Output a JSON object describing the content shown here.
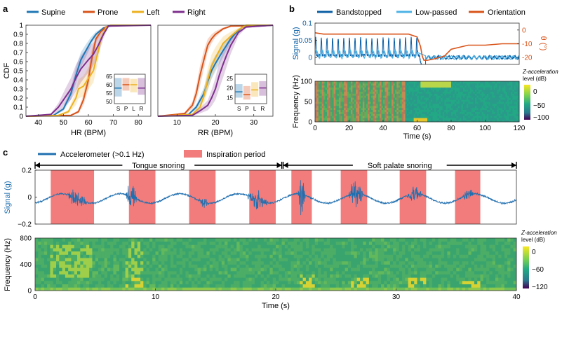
{
  "panel_labels": {
    "a": "a",
    "b": "b",
    "c": "c"
  },
  "colors": {
    "supine": "#1f77b4",
    "prone": "#d9541a",
    "left": "#edb120",
    "right": "#7e2f8e",
    "bandstopped": "#0b5fa5",
    "lowpassed": "#4db3e6",
    "orientation": "#d9541a",
    "inspiration": "#f27c7c",
    "accel": "#1f6fb0"
  },
  "chart_data": [
    {
      "id": "a_hr",
      "type": "line",
      "title": "",
      "xlabel": "HR (BPM)",
      "ylabel": "CDF",
      "xlim": [
        35,
        85
      ],
      "ylim": [
        0,
        1
      ],
      "xticks": [
        "40",
        "50",
        "60",
        "70",
        "80"
      ],
      "yticks": [
        "0",
        "0.1",
        "0.2",
        "0.3",
        "0.4",
        "0.5",
        "0.6",
        "0.7",
        "0.8",
        "0.9",
        "1"
      ],
      "legend": [
        "Supine",
        "Prone",
        "Left",
        "Right"
      ],
      "series": [
        {
          "name": "Supine",
          "x": [
            35,
            46,
            50,
            53,
            55,
            57,
            59,
            61,
            63,
            66,
            70,
            85
          ],
          "y": [
            0,
            0.01,
            0.08,
            0.25,
            0.45,
            0.62,
            0.72,
            0.82,
            0.9,
            0.97,
            1,
            1
          ]
        },
        {
          "name": "Prone",
          "x": [
            35,
            53,
            56,
            58,
            60,
            61,
            62,
            63,
            65,
            67,
            69,
            85
          ],
          "y": [
            0,
            0.01,
            0.05,
            0.18,
            0.4,
            0.58,
            0.72,
            0.85,
            0.93,
            0.98,
            1,
            1
          ]
        },
        {
          "name": "Left",
          "x": [
            35,
            48,
            52,
            55,
            56,
            58,
            62,
            64,
            65,
            67,
            69,
            85
          ],
          "y": [
            0,
            0.01,
            0.05,
            0.2,
            0.3,
            0.33,
            0.5,
            0.72,
            0.85,
            0.97,
            1,
            1
          ]
        },
        {
          "name": "Right",
          "x": [
            35,
            45,
            48,
            51,
            53,
            55,
            57,
            60,
            62,
            64,
            66,
            68,
            85
          ],
          "y": [
            0,
            0.02,
            0.1,
            0.22,
            0.3,
            0.42,
            0.52,
            0.62,
            0.68,
            0.78,
            0.9,
            0.99,
            1
          ]
        }
      ],
      "inset": {
        "yticks": [
          "50",
          "55",
          "60",
          "65"
        ],
        "ylim": [
          50,
          65
        ],
        "categories": [
          "S",
          "P",
          "L",
          "R"
        ],
        "boxes": [
          {
            "lo": 53,
            "hi": 64,
            "med": 58
          },
          {
            "lo": 56.5,
            "hi": 64,
            "med": 60
          },
          {
            "lo": 55.5,
            "hi": 63.5,
            "med": 60
          },
          {
            "lo": 54,
            "hi": 64,
            "med": 58
          }
        ]
      }
    },
    {
      "id": "a_rr",
      "type": "line",
      "title": "",
      "xlabel": "RR (BPM)",
      "ylabel": "",
      "xlim": [
        5,
        35
      ],
      "ylim": [
        0,
        1
      ],
      "xticks": [
        "10",
        "20",
        "30"
      ],
      "series": [
        {
          "name": "Supine",
          "x": [
            5,
            13,
            15,
            17,
            18,
            19,
            20,
            21,
            22,
            24,
            25,
            27,
            35
          ],
          "y": [
            0,
            0.02,
            0.1,
            0.25,
            0.38,
            0.5,
            0.58,
            0.65,
            0.72,
            0.85,
            0.9,
            0.98,
            1
          ]
        },
        {
          "name": "Prone",
          "x": [
            5,
            12,
            14,
            15,
            16,
            17,
            18,
            19,
            20,
            22,
            24,
            35
          ],
          "y": [
            0,
            0.03,
            0.12,
            0.25,
            0.45,
            0.62,
            0.78,
            0.85,
            0.9,
            0.96,
            0.99,
            1
          ]
        },
        {
          "name": "Left",
          "x": [
            5,
            14,
            16,
            17,
            18,
            19,
            20,
            21,
            22,
            24,
            26,
            28,
            35
          ],
          "y": [
            0,
            0.02,
            0.1,
            0.22,
            0.4,
            0.55,
            0.64,
            0.72,
            0.8,
            0.88,
            0.95,
            1,
            1
          ]
        },
        {
          "name": "Right",
          "x": [
            5,
            14,
            16,
            18,
            19,
            20,
            21,
            22,
            23,
            24,
            25,
            26,
            28,
            35
          ],
          "y": [
            0,
            0.01,
            0.06,
            0.12,
            0.2,
            0.3,
            0.45,
            0.57,
            0.68,
            0.78,
            0.85,
            0.92,
            0.98,
            1
          ]
        }
      ],
      "inset": {
        "yticks": [
          "15",
          "20",
          "25"
        ],
        "ylim": [
          13,
          26
        ],
        "categories": [
          "S",
          "P",
          "L",
          "R"
        ],
        "boxes": [
          {
            "lo": 15,
            "hi": 22,
            "med": 18
          },
          {
            "lo": 14,
            "hi": 21,
            "med": 16.5
          },
          {
            "lo": 15.5,
            "hi": 23,
            "med": 19
          },
          {
            "lo": 16,
            "hi": 23.5,
            "med": 20
          }
        ]
      }
    },
    {
      "id": "b_signal",
      "type": "line",
      "title": "",
      "xlabel": "",
      "ylabel": "Signal (g)",
      "y2label": "θ (°)",
      "xlim": [
        0,
        120
      ],
      "ylim": [
        -0.02,
        0.1
      ],
      "y2lim": [
        -25,
        5
      ],
      "yticks": [
        "0",
        "0.05",
        "0.1"
      ],
      "y2ticks": [
        "0",
        "-10",
        "-20"
      ],
      "legend": [
        "Bandstopped",
        "Low-passed",
        "Orientation"
      ],
      "orientation": {
        "x": [
          0,
          5,
          55,
          60,
          62,
          63,
          64,
          66,
          70,
          76,
          80,
          90,
          100,
          110,
          120
        ],
        "y": [
          -2,
          -3,
          -3,
          -5,
          -12,
          -19,
          -22,
          -22,
          -21,
          -19,
          -14,
          -11,
          -11,
          -10,
          -10
        ]
      }
    },
    {
      "id": "b_spec",
      "type": "heatmap",
      "title": "",
      "xlabel": "Time (s)",
      "ylabel": "Frequency (Hz)",
      "xlim": [
        0,
        120
      ],
      "ylim": [
        0,
        100
      ],
      "xticks": [
        "0",
        "20",
        "40",
        "60",
        "80",
        "100",
        "120"
      ],
      "yticks": [
        "0",
        "50",
        "100"
      ],
      "colorbar": {
        "label1": "Z-acceleration",
        "label2": "level (dB)",
        "ticks": [
          "0",
          "−50",
          "−100"
        ]
      }
    },
    {
      "id": "c_signal",
      "type": "line",
      "title": "",
      "xlabel": "",
      "ylabel": "Signal (g)",
      "xlim": [
        0,
        40
      ],
      "ylim": [
        -0.2,
        0.2
      ],
      "yticks": [
        "0.2",
        "0",
        "−0.2"
      ],
      "legend": [
        "Accelerometer (>0.1 Hz)",
        "Inspiration period"
      ],
      "inspiration_periods": [
        [
          1.3,
          4.9
        ],
        [
          7.8,
          10.0
        ],
        [
          12.8,
          15.0
        ],
        [
          17.8,
          20.0
        ],
        [
          21.3,
          23.0
        ],
        [
          25.4,
          27.6
        ],
        [
          30.3,
          32.5
        ],
        [
          34.9,
          37.0
        ]
      ],
      "annotations": [
        {
          "text": "Tongue snoring",
          "x0": 0,
          "x1": 20.5
        },
        {
          "text": "Soft palate snoring",
          "x0": 20.5,
          "x1": 40
        }
      ]
    },
    {
      "id": "c_spec",
      "type": "heatmap",
      "title": "",
      "xlabel": "Time (s)",
      "ylabel": "Frequency (Hz)",
      "xlim": [
        0,
        40
      ],
      "ylim": [
        0,
        800
      ],
      "xticks": [
        "0",
        "10",
        "20",
        "30",
        "40"
      ],
      "yticks": [
        "0",
        "400",
        "800"
      ],
      "colorbar": {
        "label1": "Z-acceleration",
        "label2": "level (dB)",
        "ticks": [
          "0",
          "−60",
          "−120"
        ]
      }
    }
  ]
}
